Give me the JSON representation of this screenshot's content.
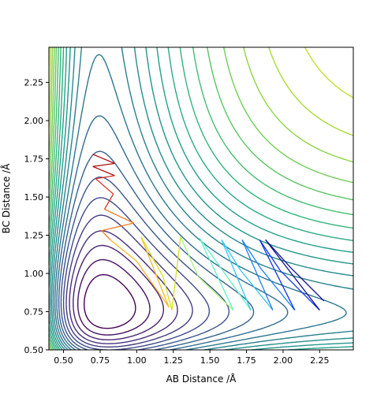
{
  "chart_data": {
    "type": "contour",
    "xlabel": "AB Distance /Å",
    "ylabel": "BC Distance /Å",
    "xlim": [
      0.4,
      2.48
    ],
    "ylim": [
      0.5,
      2.48
    ],
    "x_ticks": [
      "0.50",
      "0.75",
      "1.00",
      "1.25",
      "1.50",
      "1.75",
      "2.00",
      "2.25"
    ],
    "y_ticks": [
      "0.50",
      "0.75",
      "1.00",
      "1.25",
      "1.50",
      "1.75",
      "2.00",
      "2.25"
    ],
    "x_tick_values": [
      0.5,
      0.75,
      1.0,
      1.25,
      1.5,
      1.75,
      2.0,
      2.25
    ],
    "y_tick_values": [
      0.5,
      0.75,
      1.0,
      1.25,
      1.5,
      1.75,
      2.0,
      2.25
    ],
    "colormap": "viridis",
    "grid": false,
    "contour_levels": 24,
    "trajectory_colormap": [
      "#aa1010",
      "#d83020",
      "#f07a20",
      "#f8b820",
      "#d8e020",
      "#a8f080",
      "#60f0c8",
      "#30c8f0",
      "#2080f0",
      "#1030f0",
      "#101090"
    ],
    "trajectory_points": [
      {
        "x": 0.7,
        "y": 1.78
      },
      {
        "x": 0.85,
        "y": 1.72
      },
      {
        "x": 0.7,
        "y": 1.7
      },
      {
        "x": 0.85,
        "y": 1.64
      },
      {
        "x": 0.72,
        "y": 1.62
      },
      {
        "x": 0.84,
        "y": 1.52
      },
      {
        "x": 0.78,
        "y": 1.42
      },
      {
        "x": 0.98,
        "y": 1.33
      },
      {
        "x": 0.76,
        "y": 1.28
      },
      {
        "x": 0.82,
        "y": 1.22
      },
      {
        "x": 1.0,
        "y": 1.08
      },
      {
        "x": 1.22,
        "y": 0.78
      },
      {
        "x": 1.03,
        "y": 1.24
      },
      {
        "x": 1.18,
        "y": 0.98
      },
      {
        "x": 1.24,
        "y": 0.76
      },
      {
        "x": 1.3,
        "y": 1.24
      },
      {
        "x": 1.42,
        "y": 0.98
      },
      {
        "x": 1.66,
        "y": 0.76
      },
      {
        "x": 1.43,
        "y": 1.23
      },
      {
        "x": 1.58,
        "y": 1.03
      },
      {
        "x": 1.78,
        "y": 0.76
      },
      {
        "x": 1.58,
        "y": 1.22
      },
      {
        "x": 1.71,
        "y": 1.02
      },
      {
        "x": 1.93,
        "y": 0.76
      },
      {
        "x": 1.72,
        "y": 1.22
      },
      {
        "x": 1.85,
        "y": 1.03
      },
      {
        "x": 2.08,
        "y": 0.76
      },
      {
        "x": 1.84,
        "y": 1.22
      },
      {
        "x": 1.98,
        "y": 1.02
      },
      {
        "x": 2.25,
        "y": 0.76
      },
      {
        "x": 1.88,
        "y": 1.22
      },
      {
        "x": 2.05,
        "y": 1.04
      },
      {
        "x": 2.28,
        "y": 0.82
      }
    ]
  }
}
